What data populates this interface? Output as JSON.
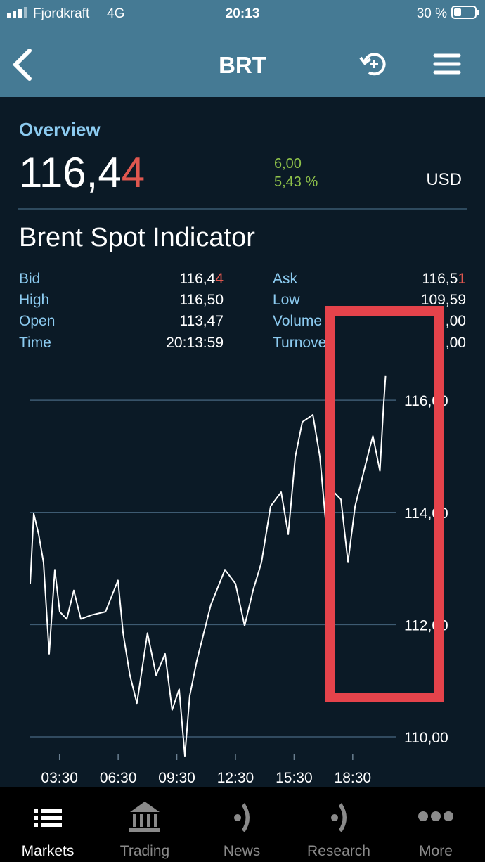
{
  "status_bar": {
    "carrier": "Fjordkraft",
    "network": "4G",
    "time": "20:13",
    "battery": "30 %"
  },
  "nav": {
    "title": "BRT"
  },
  "overview": {
    "heading": "Overview",
    "price_main": "116,4",
    "price_last": "4",
    "change": "6,00",
    "change_pct": "5,43 %",
    "currency": "USD"
  },
  "instrument": "Brent Spot Indicator",
  "stats_left": [
    {
      "label": "Bid",
      "value": "116,4",
      "value_last": "4"
    },
    {
      "label": "High",
      "value": "116,50"
    },
    {
      "label": "Open",
      "value": "113,47"
    },
    {
      "label": "Time",
      "value": "20:13:59"
    }
  ],
  "stats_right": [
    {
      "label": "Ask",
      "value": "116,5",
      "value_last": "1"
    },
    {
      "label": "Low",
      "value": "109,59"
    },
    {
      "label": "Volume",
      "value": ",00"
    },
    {
      "label": "Turnover",
      "value": ",00"
    }
  ],
  "chart_data": {
    "type": "line",
    "x": [
      2.0,
      2.18,
      2.43,
      2.68,
      2.97,
      3.26,
      3.51,
      3.87,
      4.23,
      4.59,
      5.13,
      5.85,
      6.49,
      6.75,
      7.1,
      7.46,
      8.0,
      8.44,
      8.9,
      9.26,
      9.62,
      9.91,
      10.16,
      10.52,
      11.24,
      11.96,
      12.5,
      12.97,
      13.4,
      13.83,
      14.3,
      14.84,
      15.2,
      15.56,
      15.92,
      16.46,
      16.82,
      17.11,
      17.54,
      17.9,
      18.26,
      18.62,
      18.98,
      19.34,
      19.53,
      19.89,
      20.07,
      20.18
    ],
    "series": [
      {
        "color": "#ffffff",
        "values": [
          112.73,
          113.98,
          113.61,
          113.11,
          111.48,
          112.98,
          112.23,
          112.1,
          112.61,
          112.1,
          112.17,
          112.23,
          112.79,
          111.85,
          111.1,
          110.6,
          111.85,
          111.1,
          111.48,
          110.48,
          110.85,
          109.66,
          110.73,
          111.35,
          112.35,
          112.98,
          112.73,
          111.98,
          112.61,
          113.11,
          114.11,
          114.36,
          113.61,
          114.99,
          115.61,
          115.74,
          114.99,
          113.86,
          114.36,
          114.23,
          113.11,
          114.11,
          114.61,
          115.11,
          115.36,
          114.74,
          115.86,
          116.43
        ]
      }
    ],
    "xlim": [
      2.0,
      20.7
    ],
    "ylim": [
      109.65,
      116.49
    ],
    "xticks": [
      {
        "value": 3.5,
        "label": "03:30"
      },
      {
        "value": 6.5,
        "label": "06:30"
      },
      {
        "value": 9.5,
        "label": "09:30"
      },
      {
        "value": 12.5,
        "label": "12:30"
      },
      {
        "value": 15.5,
        "label": "15:30"
      },
      {
        "value": 18.5,
        "label": "18:30"
      }
    ],
    "yticks": [
      {
        "value": 110,
        "label": "110,00"
      },
      {
        "value": 112,
        "label": "112,00"
      },
      {
        "value": 114,
        "label": "114,00"
      },
      {
        "value": 116,
        "label": "116,00"
      }
    ],
    "grid": true
  },
  "tabs": [
    "Markets",
    "Trading",
    "News",
    "Research",
    "More"
  ]
}
